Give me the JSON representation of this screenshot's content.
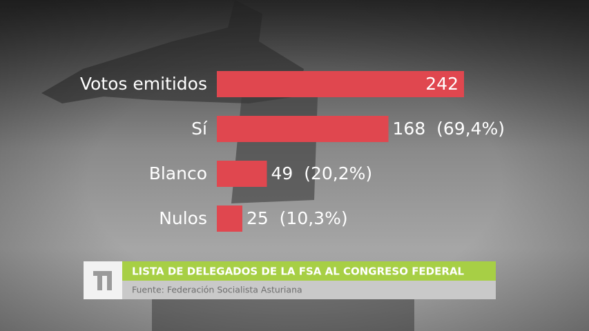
{
  "chart_data": {
    "type": "barh",
    "title": "LISTA DE DELEGADOS DE LA FSA AL CONGRESO FEDERAL",
    "source": "Fuente: Federación Socialista Asturiana",
    "categories": [
      "Votos emitidos",
      "Sí",
      "Blanco",
      "Nulos"
    ],
    "values": [
      242,
      168,
      49,
      25
    ],
    "value_labels": [
      "242",
      "168  (69,4%)",
      "49  (20,2%)",
      "25  (10,3%)"
    ],
    "color": "#e0474f"
  }
}
